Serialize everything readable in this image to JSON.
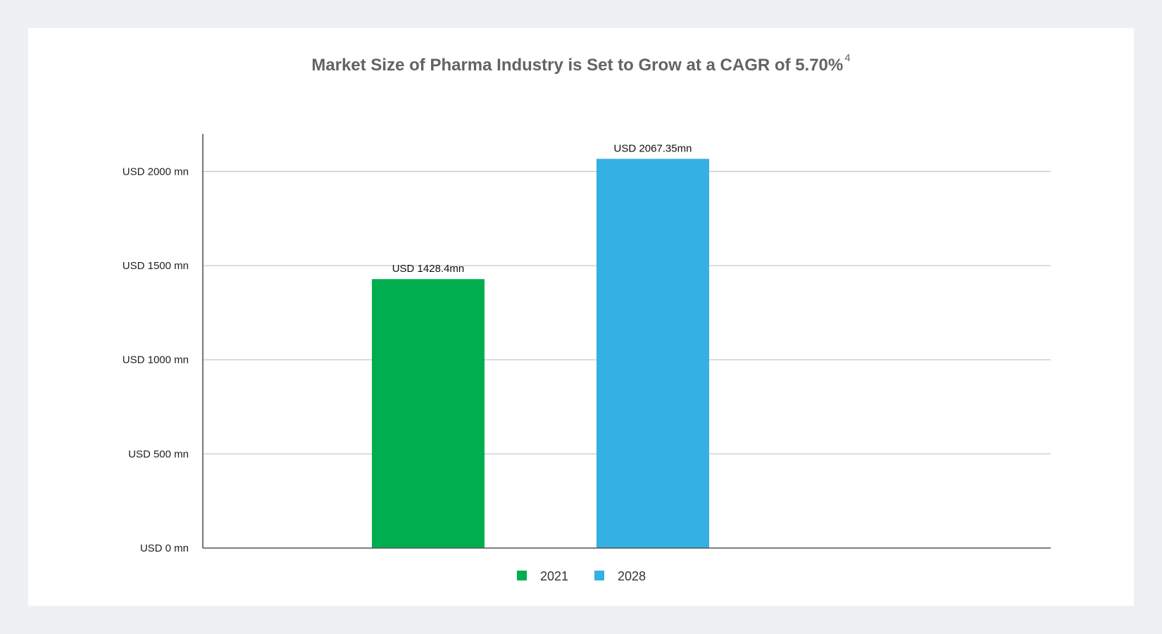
{
  "chart_data": {
    "type": "bar",
    "title": "Market Size of Pharma Industry is Set to Grow at a CAGR of 5.70%",
    "title_superscript": "4",
    "categories": [
      "2021",
      "2028"
    ],
    "values": [
      1428.4,
      2067.35
    ],
    "data_labels": [
      "USD 1428.4mn",
      "USD 2067.35mn"
    ],
    "colors": [
      "#00ae4f",
      "#34b0e3"
    ],
    "ylim": [
      0,
      2200
    ],
    "yticks": [
      0,
      500,
      1000,
      1500,
      2000
    ],
    "ytick_labels": [
      "USD 0 mn",
      "USD 500 mn",
      "USD 1000 mn",
      "USD 1500 mn",
      "USD 2000 mn"
    ],
    "grid": true,
    "legend_position": "bottom-center",
    "legend": [
      {
        "label": "2021",
        "color": "#00ae4f"
      },
      {
        "label": "2028",
        "color": "#34b0e3"
      }
    ]
  }
}
